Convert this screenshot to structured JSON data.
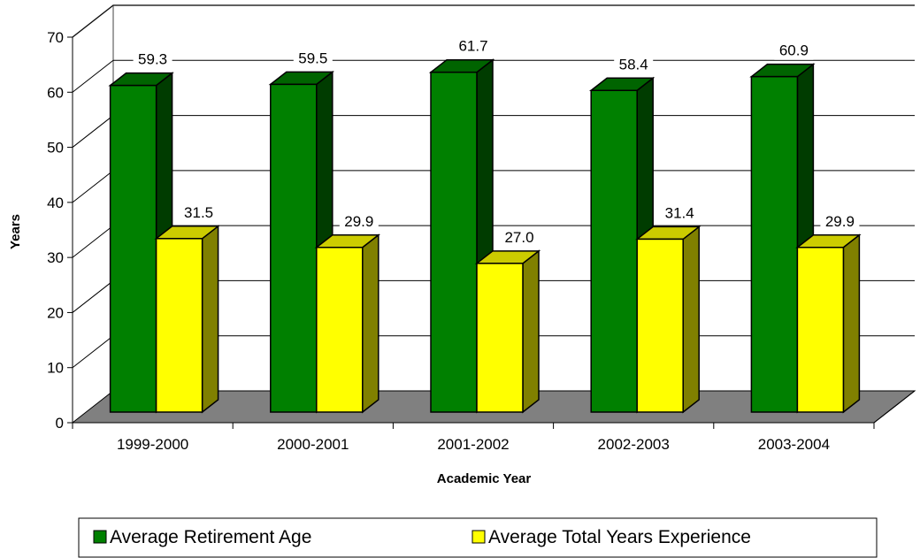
{
  "chart_data": {
    "type": "bar",
    "title": "",
    "xlabel": "Academic Year",
    "ylabel": "Years",
    "ylim": [
      0,
      70
    ],
    "ytick_step": 10,
    "grid": true,
    "style": "3d-clustered-column",
    "legend_position": "bottom",
    "categories": [
      "1999-2000",
      "2000-2001",
      "2001-2002",
      "2002-2003",
      "2003-2004"
    ],
    "series": [
      {
        "name": "Average Retirement Age",
        "values": [
          59.3,
          59.5,
          61.7,
          58.4,
          60.9
        ],
        "labels": [
          "59.3",
          "59.5",
          "61.7",
          "58.4",
          "60.9"
        ],
        "color": "#008000",
        "top_color": "#006400",
        "side_color": "#003c00"
      },
      {
        "name": "Average Total Years Experience",
        "values": [
          31.5,
          29.9,
          27.0,
          31.4,
          29.9
        ],
        "labels": [
          "31.5",
          "29.9",
          "27.0",
          "31.4",
          "29.9"
        ],
        "color": "#ffff00",
        "top_color": "#cccc00",
        "side_color": "#808000"
      }
    ],
    "floor_color": "#808080",
    "wall_line_color": "#808080"
  }
}
